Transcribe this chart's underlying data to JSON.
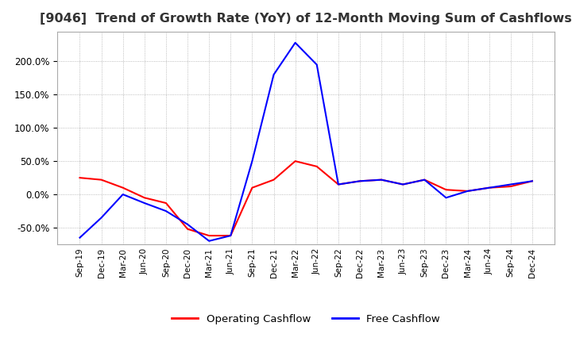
{
  "title": "[9046]  Trend of Growth Rate (YoY) of 12-Month Moving Sum of Cashflows",
  "title_fontsize": 11.5,
  "background_color": "#ffffff",
  "grid_color": "#aaaaaa",
  "legend_labels": [
    "Operating Cashflow",
    "Free Cashflow"
  ],
  "legend_colors": [
    "#ff0000",
    "#0000ff"
  ],
  "x_labels": [
    "Sep-19",
    "Dec-19",
    "Mar-20",
    "Jun-20",
    "Sep-20",
    "Dec-20",
    "Mar-21",
    "Jun-21",
    "Sep-21",
    "Dec-21",
    "Mar-22",
    "Jun-22",
    "Sep-22",
    "Dec-22",
    "Mar-23",
    "Jun-23",
    "Sep-23",
    "Dec-23",
    "Mar-24",
    "Jun-24",
    "Sep-24",
    "Dec-24"
  ],
  "operating_cashflow": [
    0.25,
    0.22,
    0.1,
    -0.05,
    -0.13,
    -0.52,
    -0.62,
    -0.62,
    0.1,
    0.22,
    0.5,
    0.42,
    0.15,
    0.2,
    0.22,
    0.15,
    0.22,
    0.07,
    0.05,
    0.1,
    0.12,
    0.2
  ],
  "free_cashflow": [
    -0.65,
    -0.35,
    0.0,
    -0.13,
    -0.25,
    -0.45,
    -0.7,
    -0.62,
    0.5,
    1.8,
    2.28,
    1.95,
    0.15,
    0.2,
    0.22,
    0.15,
    0.22,
    -0.05,
    0.05,
    0.1,
    0.15,
    0.2
  ],
  "ylim_min": -0.75,
  "ylim_max": 2.45,
  "ytick_step": 0.5
}
